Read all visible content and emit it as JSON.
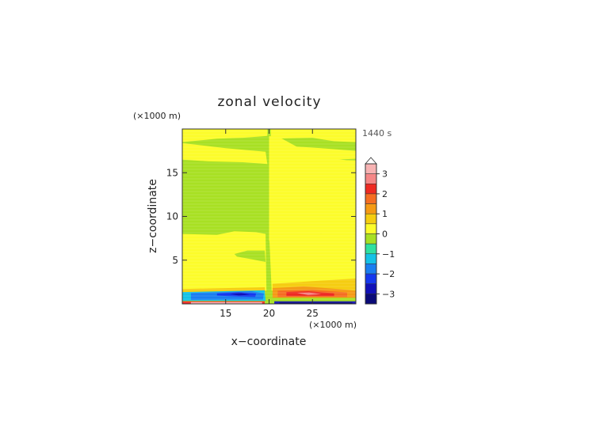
{
  "chart_data": {
    "type": "heatmap",
    "title": "zonal velocity",
    "time_label": "1440 s",
    "xlabel": "x−coordinate",
    "ylabel": "z−coordinate",
    "x_unit": "(×1000 m)",
    "y_unit": "(×1000 m)",
    "xlim": [
      10,
      30
    ],
    "ylim": [
      0,
      20
    ],
    "x_ticks": [
      15,
      20,
      25
    ],
    "y_ticks": [
      5,
      10,
      15
    ],
    "colorbar": {
      "ticks": [
        3,
        2,
        1,
        0,
        -1,
        -2,
        -3
      ],
      "levels": [
        {
          "from": 3.0,
          "to": 3.5,
          "color": "#f7b3b3"
        },
        {
          "from": 2.5,
          "to": 3.0,
          "color": "#f58787"
        },
        {
          "from": 2.0,
          "to": 2.5,
          "color": "#ee2a22"
        },
        {
          "from": 1.5,
          "to": 2.0,
          "color": "#f56d22"
        },
        {
          "from": 1.0,
          "to": 1.5,
          "color": "#f59a14"
        },
        {
          "from": 0.5,
          "to": 1.0,
          "color": "#f5cd10"
        },
        {
          "from": 0.0,
          "to": 0.5,
          "color": "#fcfc2a"
        },
        {
          "from": -0.5,
          "to": 0.0,
          "color": "#a8e023"
        },
        {
          "from": -1.0,
          "to": -0.5,
          "color": "#2fe0a0"
        },
        {
          "from": -1.5,
          "to": -1.0,
          "color": "#15c2e6"
        },
        {
          "from": -2.0,
          "to": -1.5,
          "color": "#1a7ef0"
        },
        {
          "from": -2.5,
          "to": -2.0,
          "color": "#1538ee"
        },
        {
          "from": -3.0,
          "to": -2.5,
          "color": "#1010b8"
        },
        {
          "from": -3.5,
          "to": -3.0,
          "color": "#0a0a78"
        }
      ],
      "extend_top": true
    },
    "regions": [
      {
        "level": -0.25,
        "points": [
          [
            10,
            0
          ],
          [
            30,
            0
          ],
          [
            30,
            20
          ],
          [
            10,
            20
          ]
        ]
      },
      {
        "level": 0.25,
        "points": [
          [
            10,
            20
          ],
          [
            19.8,
            20
          ],
          [
            19.8,
            19.2
          ],
          [
            17,
            19.0
          ],
          [
            14,
            18.9
          ],
          [
            10,
            18.5
          ]
        ]
      },
      {
        "level": 0.25,
        "points": [
          [
            30,
            20
          ],
          [
            20.2,
            20
          ],
          [
            20.2,
            18.9
          ],
          [
            25,
            19.0
          ],
          [
            27.5,
            18.6
          ],
          [
            30,
            18.5
          ]
        ]
      },
      {
        "level": 0.25,
        "points": [
          [
            20,
            19.2
          ],
          [
            21.5,
            18.9
          ],
          [
            25,
            17.0
          ],
          [
            27.5,
            16.6
          ],
          [
            30,
            16.3
          ],
          [
            30,
            15.6
          ],
          [
            27,
            14.9
          ],
          [
            23.5,
            14.5
          ],
          [
            20,
            14.6
          ]
        ]
      },
      {
        "level": 0.25,
        "points": [
          [
            10,
            18.4
          ],
          [
            15,
            17.8
          ],
          [
            19.6,
            17.4
          ],
          [
            19.8,
            16.0
          ],
          [
            17,
            16.2
          ],
          [
            13,
            16.3
          ],
          [
            10,
            16.5
          ]
        ]
      },
      {
        "level": 0.25,
        "points": [
          [
            20,
            18.6
          ],
          [
            23,
            18.0
          ],
          [
            26,
            17.8
          ],
          [
            30,
            17.5
          ],
          [
            30,
            16.6
          ],
          [
            25,
            16.4
          ],
          [
            20,
            16.6
          ]
        ]
      },
      {
        "level": 0.25,
        "points": [
          [
            20,
            16.6
          ],
          [
            30,
            16.4
          ],
          [
            30,
            8.5
          ],
          [
            27,
            8.3
          ],
          [
            26,
            8.0
          ],
          [
            24,
            7.3
          ],
          [
            20,
            7.2
          ]
        ]
      },
      {
        "level": 0.25,
        "points": [
          [
            10,
            8.0
          ],
          [
            14,
            7.9
          ],
          [
            16,
            8.3
          ],
          [
            18.5,
            8.2
          ],
          [
            19.6,
            8.0
          ],
          [
            19.7,
            1.5
          ],
          [
            10,
            1.5
          ]
        ]
      },
      {
        "level": 0.25,
        "points": [
          [
            20,
            8.1
          ],
          [
            26,
            8.0
          ],
          [
            27,
            8.6
          ],
          [
            30,
            8.6
          ],
          [
            30,
            1.5
          ],
          [
            20.3,
            1.5
          ]
        ]
      },
      {
        "level": -0.25,
        "points": [
          [
            16,
            5.7
          ],
          [
            17.5,
            6.1
          ],
          [
            19.5,
            6.1
          ],
          [
            19.6,
            4.8
          ],
          [
            18,
            5.1
          ],
          [
            16.3,
            5.4
          ]
        ]
      },
      {
        "level": 0.25,
        "points": [
          [
            20.3,
            6.0
          ],
          [
            22,
            6.3
          ],
          [
            23.6,
            5.9
          ],
          [
            22.4,
            4.8
          ],
          [
            21,
            4.4
          ],
          [
            20.3,
            4.5
          ]
        ]
      },
      {
        "level": 0.75,
        "points": [
          [
            10,
            1.7
          ],
          [
            19.5,
            1.9
          ],
          [
            19.6,
            1.0
          ],
          [
            10,
            0.9
          ]
        ]
      },
      {
        "level": 0.75,
        "points": [
          [
            20.4,
            2.3
          ],
          [
            25,
            2.6
          ],
          [
            30,
            2.9
          ],
          [
            30,
            1.0
          ],
          [
            20.4,
            0.9
          ]
        ]
      },
      {
        "level": -1.25,
        "points": [
          [
            10,
            1.35
          ],
          [
            19.5,
            1.55
          ],
          [
            19.6,
            0.35
          ],
          [
            10,
            0.35
          ]
        ]
      },
      {
        "level": -1.75,
        "points": [
          [
            11,
            1.25
          ],
          [
            18,
            1.45
          ],
          [
            19.4,
            1.2
          ],
          [
            19.3,
            0.5
          ],
          [
            11,
            0.45
          ]
        ]
      },
      {
        "level": -2.25,
        "points": [
          [
            14,
            1.2
          ],
          [
            16.5,
            1.35
          ],
          [
            18.5,
            1.2
          ],
          [
            18.4,
            0.8
          ],
          [
            16,
            0.85
          ],
          [
            14,
            0.95
          ]
        ]
      },
      {
        "level": -2.75,
        "points": [
          [
            15.5,
            1.15
          ],
          [
            16.8,
            1.25
          ],
          [
            17.8,
            1.05
          ],
          [
            16.5,
            0.95
          ]
        ]
      },
      {
        "level": 1.25,
        "points": [
          [
            20.4,
            1.8
          ],
          [
            24,
            2.0
          ],
          [
            28,
            1.7
          ],
          [
            30,
            1.5
          ],
          [
            30,
            0.7
          ],
          [
            20.4,
            0.7
          ]
        ]
      },
      {
        "level": 1.75,
        "points": [
          [
            21,
            1.5
          ],
          [
            25,
            1.6
          ],
          [
            29,
            1.3
          ],
          [
            29,
            0.8
          ],
          [
            21,
            0.8
          ]
        ]
      },
      {
        "level": 2.25,
        "points": [
          [
            22,
            1.35
          ],
          [
            24.5,
            1.45
          ],
          [
            27.5,
            1.2
          ],
          [
            27.5,
            0.9
          ],
          [
            22,
            0.9
          ]
        ]
      },
      {
        "level": 2.75,
        "points": [
          [
            23.2,
            1.25
          ],
          [
            24.6,
            1.3
          ],
          [
            26,
            1.1
          ],
          [
            24.5,
            1.0
          ]
        ]
      },
      {
        "level": 2.25,
        "points": [
          [
            10,
            0.3
          ],
          [
            19.5,
            0.3
          ],
          [
            19.5,
            0
          ],
          [
            10,
            0
          ]
        ]
      },
      {
        "level": 3.25,
        "points": [
          [
            11,
            0.2
          ],
          [
            19.2,
            0.2
          ],
          [
            19.2,
            0
          ],
          [
            11,
            0
          ]
        ]
      },
      {
        "level": -2.75,
        "points": [
          [
            20.6,
            0.3
          ],
          [
            30,
            0.3
          ],
          [
            30,
            0
          ],
          [
            20.6,
            0
          ]
        ]
      },
      {
        "level": -3.25,
        "points": [
          [
            21.2,
            0.2
          ],
          [
            29.6,
            0.2
          ],
          [
            29.6,
            0
          ],
          [
            21.2,
            0
          ]
        ]
      }
    ]
  }
}
